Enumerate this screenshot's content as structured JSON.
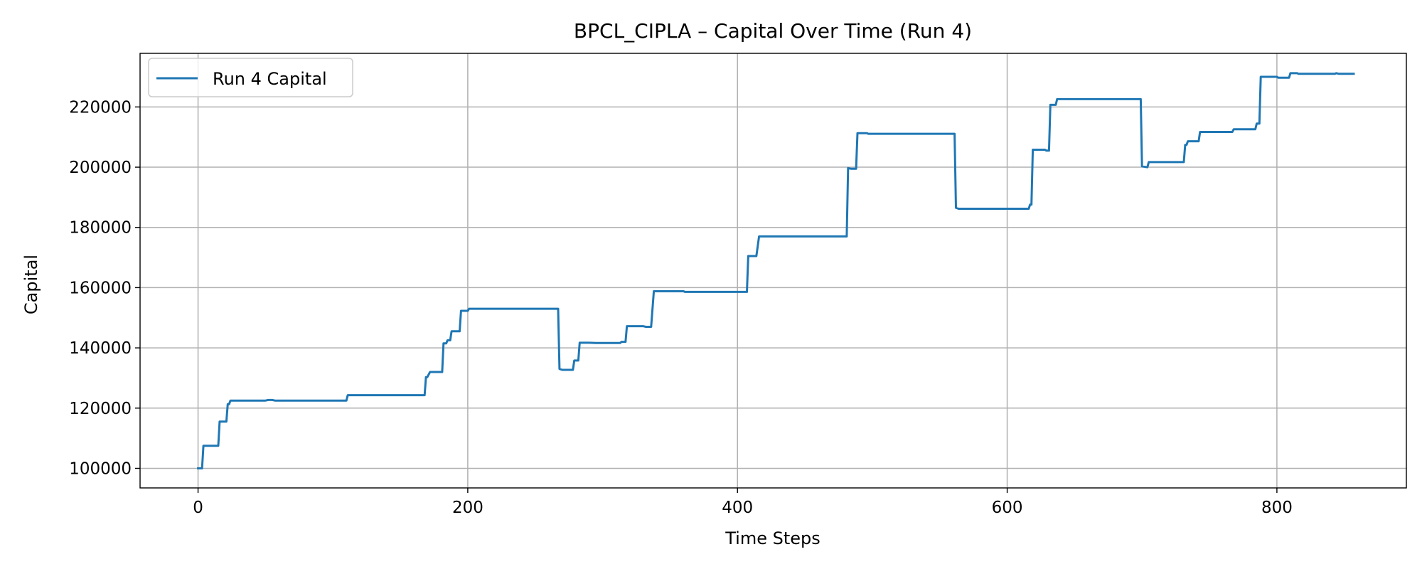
{
  "chart_data": {
    "type": "line",
    "title": "BPCL_CIPLA – Capital Over Time (Run 4)",
    "xlabel": "Time Steps",
    "ylabel": "Capital",
    "xlim": [
      -43,
      896
    ],
    "ylim": [
      93500,
      237800
    ],
    "xticks": [
      0,
      200,
      400,
      600,
      800
    ],
    "yticks": [
      100000,
      120000,
      140000,
      160000,
      180000,
      200000,
      220000
    ],
    "grid": true,
    "legend": "top-left",
    "line_color": "#1f77b4",
    "series": [
      {
        "name": "Run 4 Capital",
        "points": [
          [
            0,
            100000
          ],
          [
            3,
            100000
          ],
          [
            4,
            107500
          ],
          [
            15,
            107500
          ],
          [
            16,
            115500
          ],
          [
            21,
            115500
          ],
          [
            22,
            121300
          ],
          [
            23,
            121300
          ],
          [
            24,
            122500
          ],
          [
            50,
            122500
          ],
          [
            52,
            122700
          ],
          [
            55,
            122700
          ],
          [
            57,
            122500
          ],
          [
            110,
            122500
          ],
          [
            111,
            124300
          ],
          [
            168,
            124300
          ],
          [
            169,
            130300
          ],
          [
            170,
            130300
          ],
          [
            172,
            132000
          ],
          [
            181,
            132000
          ],
          [
            182,
            141500
          ],
          [
            184,
            141500
          ],
          [
            185,
            142500
          ],
          [
            187,
            142500
          ],
          [
            188,
            145500
          ],
          [
            194,
            145500
          ],
          [
            195,
            152300
          ],
          [
            200,
            152300
          ],
          [
            201,
            153000
          ],
          [
            267,
            153000
          ],
          [
            268,
            133000
          ],
          [
            270,
            132700
          ],
          [
            278,
            132700
          ],
          [
            279,
            135800
          ],
          [
            282,
            135800
          ],
          [
            283,
            141700
          ],
          [
            290,
            141700
          ],
          [
            295,
            141600
          ],
          [
            313,
            141600
          ],
          [
            314,
            142000
          ],
          [
            317,
            142000
          ],
          [
            318,
            147200
          ],
          [
            330,
            147200
          ],
          [
            332,
            147000
          ],
          [
            336,
            147000
          ],
          [
            338,
            158800
          ],
          [
            360,
            158800
          ],
          [
            361,
            158600
          ],
          [
            407,
            158600
          ],
          [
            408,
            170500
          ],
          [
            414,
            170500
          ],
          [
            416,
            177000
          ],
          [
            481,
            177000
          ],
          [
            482,
            199700
          ],
          [
            484,
            199500
          ],
          [
            488,
            199500
          ],
          [
            489,
            211300
          ],
          [
            496,
            211300
          ],
          [
            497,
            211100
          ],
          [
            561,
            211100
          ],
          [
            562,
            186500
          ],
          [
            564,
            186200
          ],
          [
            616,
            186200
          ],
          [
            617,
            187600
          ],
          [
            618,
            187600
          ],
          [
            619,
            205800
          ],
          [
            628,
            205800
          ],
          [
            629,
            205500
          ],
          [
            631,
            205500
          ],
          [
            632,
            220700
          ],
          [
            636,
            220700
          ],
          [
            637,
            222600
          ],
          [
            699,
            222600
          ],
          [
            700,
            200300
          ],
          [
            704,
            200000
          ],
          [
            705,
            201700
          ],
          [
            731,
            201700
          ],
          [
            732,
            207400
          ],
          [
            733,
            207400
          ],
          [
            734,
            208600
          ],
          [
            742,
            208600
          ],
          [
            743,
            211700
          ],
          [
            767,
            211700
          ],
          [
            768,
            212600
          ],
          [
            784,
            212600
          ],
          [
            785,
            214500
          ],
          [
            787,
            214500
          ],
          [
            788,
            230000
          ],
          [
            800,
            230000
          ],
          [
            801,
            229700
          ],
          [
            809,
            229700
          ],
          [
            810,
            231200
          ],
          [
            815,
            231200
          ],
          [
            816,
            231000
          ],
          [
            843,
            231000
          ],
          [
            844,
            231200
          ],
          [
            846,
            231000
          ],
          [
            857,
            231000
          ]
        ]
      }
    ]
  }
}
